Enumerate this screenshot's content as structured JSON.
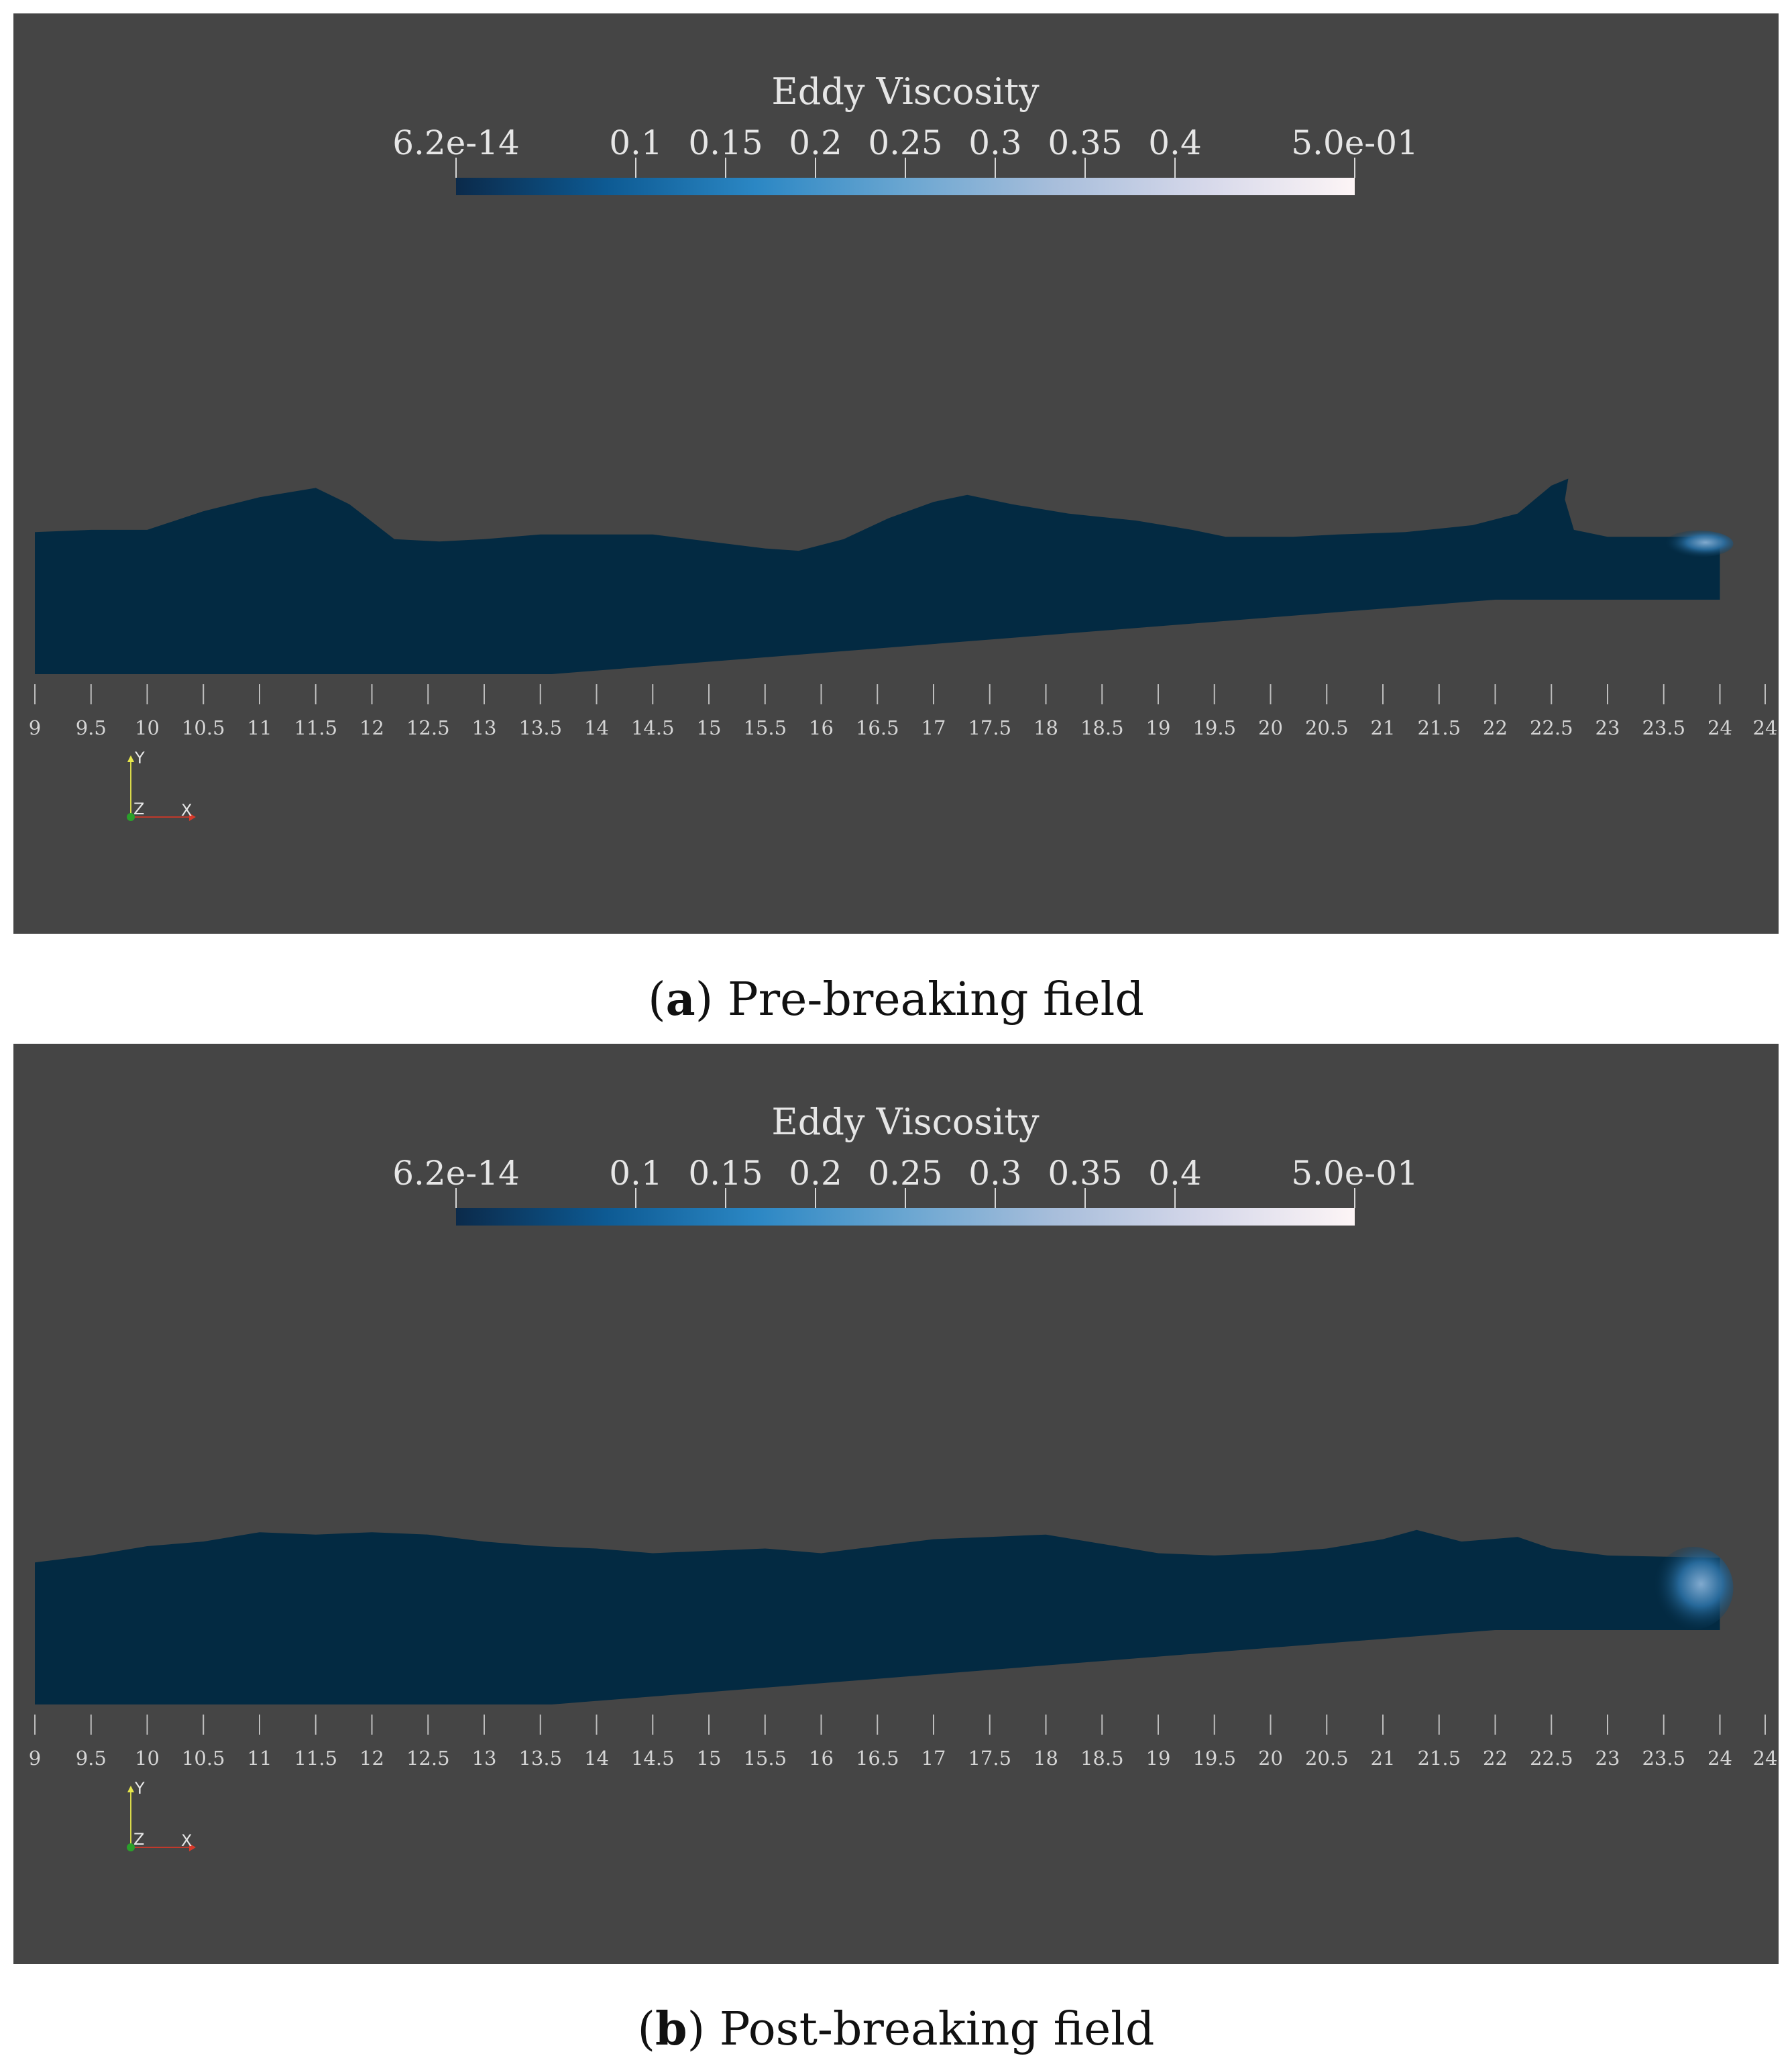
{
  "colorbar": {
    "title": "Eddy Viscosity",
    "labels": [
      "6.2e-14",
      "0.1",
      "0.15",
      "0.2",
      "0.25",
      "0.3",
      "0.35",
      "0.4",
      "5.0e-01"
    ],
    "values": [
      0,
      0.1,
      0.15,
      0.2,
      0.25,
      0.3,
      0.35,
      0.4,
      0.5
    ],
    "colormap": [
      "#0b2a4a",
      "#0d5a93",
      "#2b87c4",
      "#6aa6d1",
      "#a8bedb",
      "#d6d8ea",
      "#fdf5f6"
    ]
  },
  "x_axis": {
    "ticks": [
      "9",
      "9.5",
      "10",
      "10.5",
      "11",
      "11.5",
      "12",
      "12.5",
      "13",
      "13.5",
      "14",
      "14.5",
      "15",
      "15.5",
      "16",
      "16.5",
      "17",
      "17.5",
      "18",
      "18.5",
      "19",
      "19.5",
      "20",
      "20.5",
      "21",
      "21.5",
      "22",
      "22.5",
      "23",
      "23.5",
      "24",
      "24"
    ]
  },
  "orientation": {
    "y_label": "Y",
    "z_label": "Z",
    "x_label": "X"
  },
  "colors": {
    "background": "#454545",
    "water": "#032a42",
    "turbulence": "#2a6fa3",
    "text": "#e6e6e6"
  },
  "panels": [
    {
      "id": "a",
      "caption_letter": "a",
      "caption_text": " Pre-breaking field"
    },
    {
      "id": "b",
      "caption_letter": "b",
      "caption_text": " Post-breaking field"
    }
  ],
  "chart_data": [
    {
      "type": "other",
      "panel": "a",
      "x_range": [
        9,
        24
      ],
      "free_surface": [
        [
          9,
          0.61
        ],
        [
          9.5,
          0.62
        ],
        [
          10,
          0.62
        ],
        [
          10.5,
          0.7
        ],
        [
          11,
          0.76
        ],
        [
          11.5,
          0.8
        ],
        [
          11.8,
          0.73
        ],
        [
          12.2,
          0.58
        ],
        [
          12.6,
          0.57
        ],
        [
          13,
          0.58
        ],
        [
          13.5,
          0.6
        ],
        [
          14,
          0.6
        ],
        [
          14.5,
          0.6
        ],
        [
          15,
          0.57
        ],
        [
          15.5,
          0.54
        ],
        [
          15.8,
          0.53
        ],
        [
          16.2,
          0.58
        ],
        [
          16.6,
          0.67
        ],
        [
          17,
          0.74
        ],
        [
          17.3,
          0.77
        ],
        [
          17.7,
          0.73
        ],
        [
          18.2,
          0.69
        ],
        [
          18.8,
          0.66
        ],
        [
          19.3,
          0.62
        ],
        [
          19.6,
          0.59
        ],
        [
          20.2,
          0.59
        ],
        [
          20.6,
          0.6
        ],
        [
          21.2,
          0.61
        ],
        [
          21.8,
          0.64
        ],
        [
          22.2,
          0.69
        ],
        [
          22.5,
          0.81
        ],
        [
          22.65,
          0.84
        ],
        [
          22.62,
          0.75
        ],
        [
          22.7,
          0.62
        ],
        [
          23,
          0.59
        ],
        [
          24,
          0.59
        ]
      ],
      "bed": [
        [
          9,
          0.0
        ],
        [
          13.6,
          0.0
        ],
        [
          22.0,
          0.32
        ],
        [
          24,
          0.32
        ]
      ],
      "high_turbulence_region": [
        [
          23.5,
          0.52
        ],
        [
          24,
          0.6
        ]
      ]
    },
    {
      "type": "other",
      "panel": "b",
      "x_range": [
        9,
        24
      ],
      "free_surface": [
        [
          9,
          0.61
        ],
        [
          9.5,
          0.64
        ],
        [
          10,
          0.68
        ],
        [
          10.5,
          0.7
        ],
        [
          11,
          0.74
        ],
        [
          11.5,
          0.73
        ],
        [
          12,
          0.74
        ],
        [
          12.5,
          0.73
        ],
        [
          13,
          0.7
        ],
        [
          13.5,
          0.68
        ],
        [
          14,
          0.67
        ],
        [
          14.5,
          0.65
        ],
        [
          15,
          0.66
        ],
        [
          15.5,
          0.67
        ],
        [
          16,
          0.65
        ],
        [
          16.5,
          0.68
        ],
        [
          17,
          0.71
        ],
        [
          17.5,
          0.72
        ],
        [
          18,
          0.73
        ],
        [
          18.5,
          0.69
        ],
        [
          19,
          0.65
        ],
        [
          19.5,
          0.64
        ],
        [
          20,
          0.65
        ],
        [
          20.5,
          0.67
        ],
        [
          21,
          0.71
        ],
        [
          21.3,
          0.75
        ],
        [
          21.7,
          0.7
        ],
        [
          22.2,
          0.72
        ],
        [
          22.5,
          0.67
        ],
        [
          23,
          0.64
        ],
        [
          24,
          0.63
        ]
      ],
      "bed": [
        [
          9,
          0.0
        ],
        [
          13.6,
          0.0
        ],
        [
          22.0,
          0.32
        ],
        [
          24,
          0.32
        ]
      ],
      "high_turbulence_region": [
        [
          23.4,
          0.34
        ],
        [
          24,
          0.66
        ]
      ]
    }
  ]
}
